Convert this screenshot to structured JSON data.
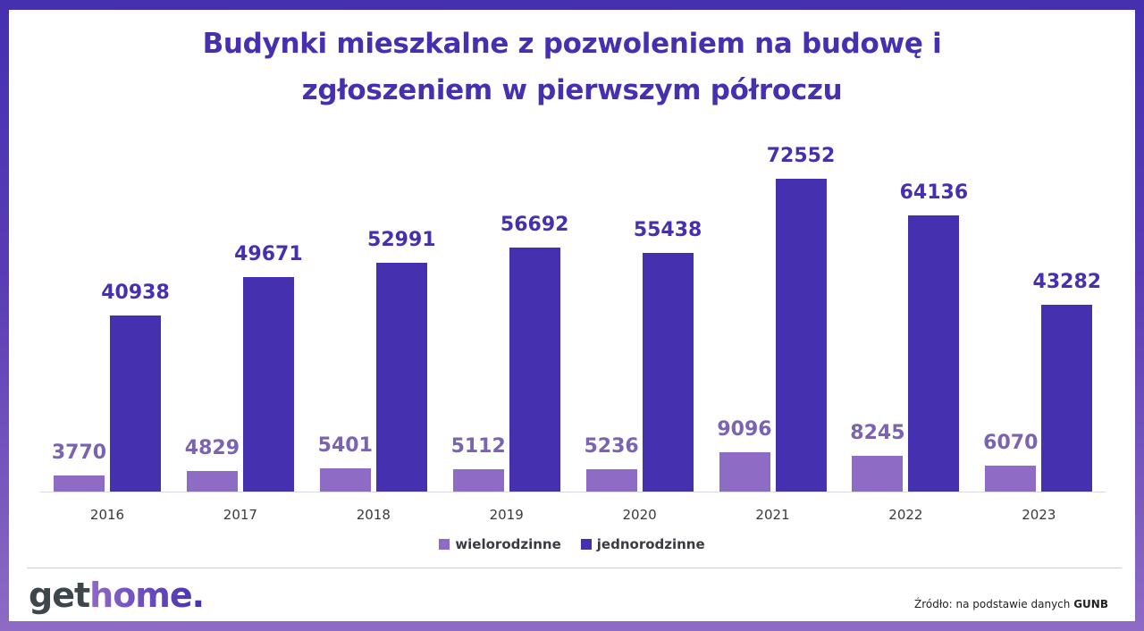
{
  "title": {
    "line1": "Budynki mieszkalne z pozwoleniem na budowę i",
    "line2": "zgłoszeniem w pierwszym półroczu"
  },
  "colors": {
    "multi_family": "#8E6BC4",
    "single_family": "#4530B0",
    "frame_top": "#4530B0",
    "frame_bottom": "#8E6BC4"
  },
  "legend": {
    "multi_label": "wielorodzinne",
    "single_label": "jednorodzinne"
  },
  "footer": {
    "logo_part1": "get",
    "logo_part2": "home.",
    "source_prefix": "Źródło: na podstawie danych ",
    "source_bold": "GUNB"
  },
  "chart_data": {
    "type": "bar",
    "title": "Budynki mieszkalne z pozwoleniem na budowę i zgłoszeniem w pierwszym półroczu",
    "xlabel": "",
    "ylabel": "",
    "categories": [
      "2016",
      "2017",
      "2018",
      "2019",
      "2020",
      "2021",
      "2022",
      "2023"
    ],
    "series": [
      {
        "name": "wielorodzinne",
        "color": "#8E6BC4",
        "values": [
          3770,
          4829,
          5401,
          5112,
          5236,
          9096,
          8245,
          6070
        ]
      },
      {
        "name": "jednorodzinne",
        "color": "#4530B0",
        "values": [
          40938,
          49671,
          52991,
          56692,
          55438,
          72552,
          64136,
          43282
        ]
      }
    ],
    "ylim": [
      0,
      80000
    ],
    "grid": false,
    "legend_position": "bottom",
    "data_labels": true
  }
}
